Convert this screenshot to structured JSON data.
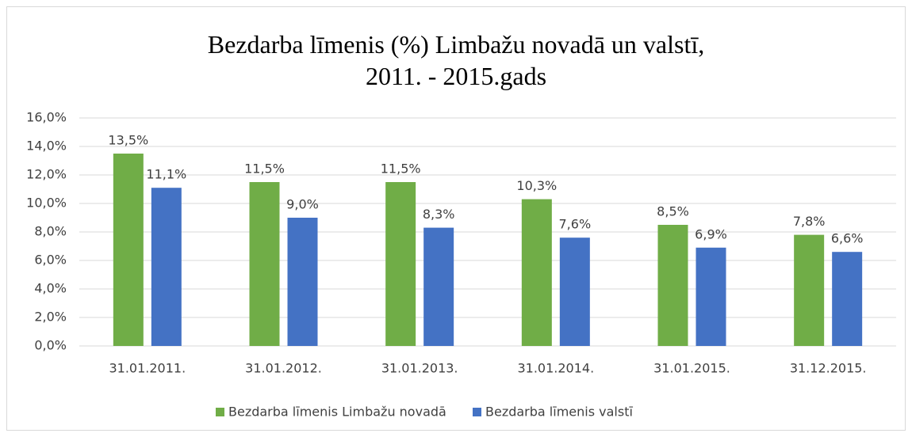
{
  "chart_data": {
    "type": "bar",
    "title": "Bezdarba līmenis (%) Limbažu novadā un valstī,\n2011. - 2015.gads",
    "categories": [
      "31.01.2011.",
      "31.01.2012.",
      "31.01.2013.",
      "31.01.2014.",
      "31.01.2015.",
      "31.12.2015."
    ],
    "series": [
      {
        "name": "Bezdarba līmenis Limbažu novadā",
        "color": "#70ad47",
        "values": [
          13.5,
          11.5,
          11.5,
          10.3,
          8.5,
          7.8
        ],
        "value_labels": [
          "13,5%",
          "11,5%",
          "11,5%",
          "10,3%",
          "8,5%",
          "7,8%"
        ]
      },
      {
        "name": "Bezdarba līmenis valstī",
        "color": "#4472c4",
        "values": [
          11.1,
          9.0,
          8.3,
          7.6,
          6.9,
          6.6
        ],
        "value_labels": [
          "11,1%",
          "9,0%",
          "8,3%",
          "7,6%",
          "6,9%",
          "6,6%"
        ]
      }
    ],
    "ylim": [
      0,
      16
    ],
    "yticks": [
      {
        "value": 0,
        "label": "0,0%"
      },
      {
        "value": 2,
        "label": "2,0%"
      },
      {
        "value": 4,
        "label": "4,0%"
      },
      {
        "value": 6,
        "label": "6,0%"
      },
      {
        "value": 8,
        "label": "8,0%"
      },
      {
        "value": 10,
        "label": "10,0%"
      },
      {
        "value": 12,
        "label": "12,0%"
      },
      {
        "value": 14,
        "label": "14,0%"
      },
      {
        "value": 16,
        "label": "16,0%"
      }
    ],
    "grid": true,
    "legend": "bottom"
  }
}
